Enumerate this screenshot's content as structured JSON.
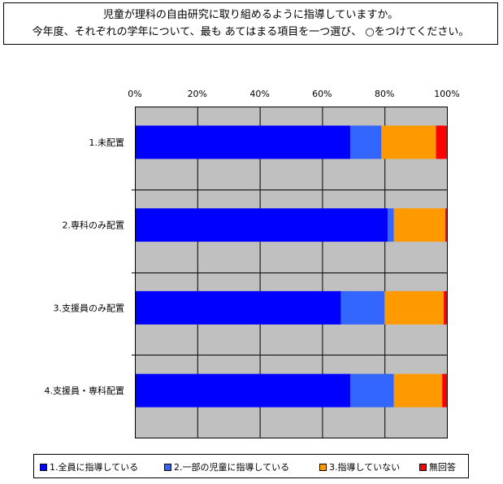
{
  "question": {
    "line1": "児童が理科の自由研究に取り組めるように指導していますか。",
    "line2": "今年度、それぞれの学年について、最も あてはまる項目を一つ選び、 ○をつけてください。"
  },
  "chart_data": {
    "type": "bar",
    "orientation": "horizontal",
    "stacked": "percent",
    "categories": [
      "1.未配置",
      "2.専科のみ配置",
      "3.支援員のみ配置",
      "4.支援員・専科配置"
    ],
    "series": [
      {
        "name": "1.全員に指導している",
        "color": "#0000FF",
        "values": [
          69,
          81,
          66,
          69
        ]
      },
      {
        "name": "2.一部の児童に指導している",
        "color": "#3366FF",
        "values": [
          10,
          2,
          14,
          14
        ]
      },
      {
        "name": "3.指導していない",
        "color": "#FF9900",
        "values": [
          17.5,
          16.5,
          19,
          15.5
        ]
      },
      {
        "name": "無回答",
        "color": "#FF0000",
        "values": [
          3.5,
          0.5,
          1,
          1.5
        ]
      }
    ],
    "xlim": [
      0,
      100
    ],
    "x_ticks": [
      "0%",
      "20%",
      "40%",
      "60%",
      "80%",
      "100%"
    ],
    "x_axis_position": "top",
    "grid": true,
    "plot_background": "#C0C0C0",
    "legend_position": "bottom"
  }
}
